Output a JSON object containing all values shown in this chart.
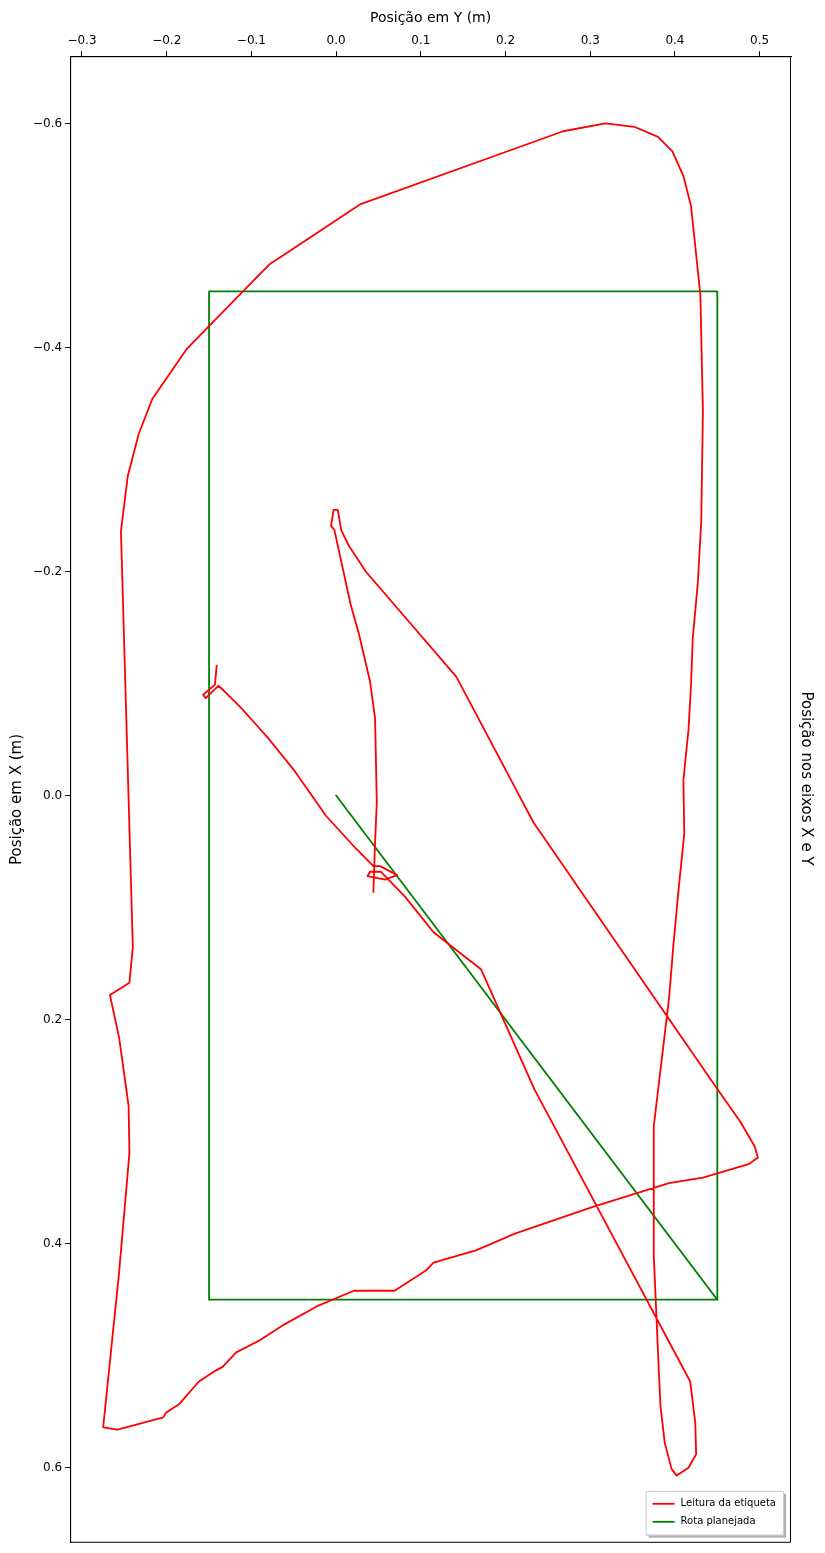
{
  "chart_data": {
    "type": "line",
    "title": "Posição nos eixos X e Y",
    "xlabel": "Posição em Y (m)",
    "ylabel": "Posição em X (m)",
    "xlim": [
      -0.314,
      0.537
    ],
    "ylim": [
      0.667,
      -0.66
    ],
    "xticks": [
      {
        "value": -0.3,
        "label": "−0.3"
      },
      {
        "value": -0.2,
        "label": "−0.2"
      },
      {
        "value": -0.1,
        "label": "−0.1"
      },
      {
        "value": 0,
        "label": "0.0"
      },
      {
        "value": 0.1,
        "label": "0.1"
      },
      {
        "value": 0.2,
        "label": "0.2"
      },
      {
        "value": 0.3,
        "label": "0.3"
      },
      {
        "value": 0.4,
        "label": "0.4"
      },
      {
        "value": 0.5,
        "label": "0.5"
      }
    ],
    "yticks": [
      {
        "value": -0.6,
        "label": "−0.6"
      },
      {
        "value": -0.4,
        "label": "−0.4"
      },
      {
        "value": -0.2,
        "label": "−0.2"
      },
      {
        "value": 0,
        "label": "0.0"
      },
      {
        "value": 0.2,
        "label": "0.2"
      },
      {
        "value": 0.4,
        "label": "0.4"
      },
      {
        "value": 0.6,
        "label": "0.6"
      }
    ],
    "legend": "bottom right",
    "marker": "none",
    "line_style": "solid",
    "series": [
      {
        "name": "Leitura da etiqueta",
        "color": "#ff0000",
        "x": [
          -0.141,
          -0.143,
          -0.157,
          -0.154,
          -0.139,
          -0.133,
          -0.113,
          -0.081,
          -0.05,
          -0.037,
          -0.012,
          0.023,
          0.044,
          0.052,
          0.072,
          0.058,
          0.037,
          0.04,
          0.053,
          0.081,
          0.115,
          0.171,
          0.234,
          0.418,
          0.424,
          0.425,
          0.416,
          0.402,
          0.396,
          0.388,
          0.383,
          0.381,
          0.375,
          0.375,
          0.393,
          0.398,
          0.404,
          0.411,
          0.41,
          0.416,
          0.419,
          0.421,
          0.427,
          0.431,
          0.433,
          0.43,
          0.424,
          0.419,
          0.41,
          0.397,
          0.38,
          0.352,
          0.318,
          0.268,
          0.029,
          -0.079,
          -0.176,
          -0.217,
          -0.233,
          -0.246,
          -0.254,
          -0.24,
          -0.244,
          -0.267,
          -0.256,
          -0.245,
          -0.244,
          -0.256,
          -0.275,
          -0.258,
          -0.204,
          -0.201,
          -0.185,
          -0.162,
          -0.144,
          -0.134,
          -0.118,
          -0.092,
          -0.061,
          -0.023,
          0.021,
          0.069,
          0.106,
          0.115,
          0.165,
          0.211,
          0.304,
          0.393,
          0.433,
          0.487,
          0.498,
          0.494,
          0.477,
          0.45,
          0.233,
          0.142,
          0.035,
          0.015,
          0.006,
          0.002,
          -0.003,
          -0.006,
          -0.002,
          0.017,
          0.027,
          0.04,
          0.046,
          0.048,
          0.046,
          0.045,
          0.044
        ],
        "values": [
          -0.116,
          -0.099,
          -0.09,
          -0.087,
          -0.098,
          -0.094,
          -0.079,
          -0.052,
          -0.023,
          -0.009,
          0.018,
          0.047,
          0.063,
          0.063,
          0.071,
          0.075,
          0.072,
          0.068,
          0.068,
          0.09,
          0.122,
          0.155,
          0.262,
          0.523,
          0.56,
          0.588,
          0.6,
          0.607,
          0.601,
          0.578,
          0.546,
          0.514,
          0.411,
          0.295,
          0.181,
          0.135,
          0.086,
          0.034,
          -0.014,
          -0.059,
          -0.099,
          -0.14,
          -0.19,
          -0.244,
          -0.343,
          -0.447,
          -0.49,
          -0.526,
          -0.553,
          -0.575,
          -0.588,
          -0.597,
          -0.6,
          -0.593,
          -0.528,
          -0.474,
          -0.399,
          -0.354,
          -0.323,
          -0.285,
          -0.236,
          0.135,
          0.167,
          0.178,
          0.217,
          0.277,
          0.319,
          0.424,
          0.564,
          0.566,
          0.555,
          0.551,
          0.543,
          0.523,
          0.514,
          0.51,
          0.497,
          0.487,
          0.472,
          0.456,
          0.442,
          0.442,
          0.424,
          0.417,
          0.406,
          0.391,
          0.367,
          0.346,
          0.341,
          0.329,
          0.323,
          0.313,
          0.291,
          0.262,
          0.024,
          -0.106,
          -0.2,
          -0.223,
          -0.237,
          -0.255,
          -0.255,
          -0.241,
          -0.237,
          -0.171,
          -0.144,
          -0.102,
          -0.069,
          0.006,
          0.042,
          0.063,
          0.086
        ]
      },
      {
        "name": "Rota planejada",
        "color": "#008000",
        "x": [
          0,
          0.45,
          0.45,
          -0.15,
          -0.15,
          0.45
        ],
        "values": [
          0,
          0.45,
          -0.45,
          -0.45,
          0.45,
          0.45
        ]
      }
    ]
  }
}
